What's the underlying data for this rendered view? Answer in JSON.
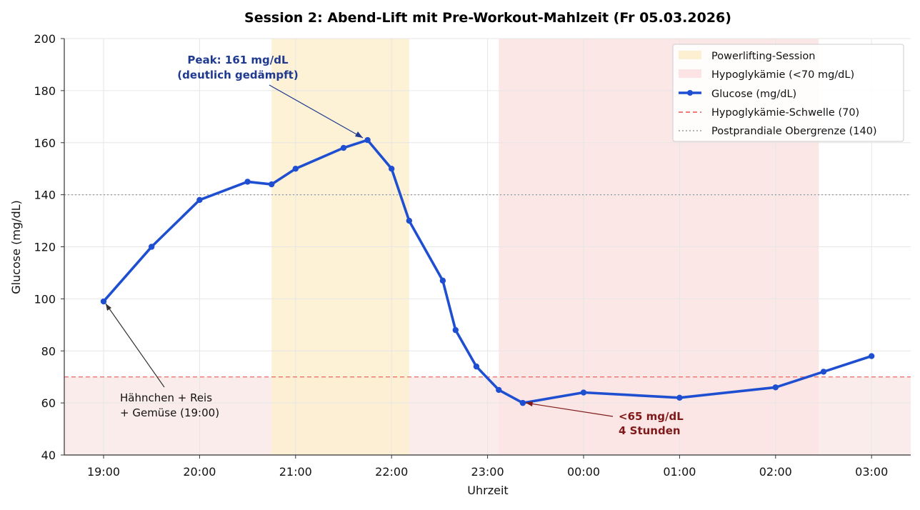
{
  "chart_data": {
    "type": "line",
    "title": "Session 2: Abend-Lift mit Pre-Workout-Mahlzeit (Fr 05.03.2026)",
    "xlabel": "Uhrzeit",
    "ylabel": "Glucose (mg/dL)",
    "ylim": [
      40,
      200
    ],
    "yticks": [
      "40",
      "60",
      "80",
      "100",
      "120",
      "140",
      "160",
      "180",
      "200"
    ],
    "xticks": [
      "19:00",
      "20:00",
      "21:00",
      "22:00",
      "23:00",
      "00:00",
      "01:00",
      "02:00",
      "03:00"
    ],
    "grid": true,
    "legend_position": "top-right",
    "series": [
      {
        "name": "Glucose (mg/dL)",
        "color": "#1f4fd1",
        "x": [
          "19:00",
          "19:30",
          "20:00",
          "20:30",
          "20:45",
          "21:00",
          "21:30",
          "21:45",
          "22:00",
          "22:11",
          "22:32",
          "22:40",
          "22:53",
          "23:07",
          "23:22",
          "00:00",
          "01:00",
          "02:00",
          "02:30",
          "03:00"
        ],
        "values": [
          99,
          120,
          138,
          145,
          144,
          150,
          158,
          161,
          150,
          130,
          107,
          88,
          74,
          65,
          60,
          64,
          62,
          66,
          72,
          78
        ]
      }
    ],
    "spans": [
      {
        "name": "Powerlifting-Session",
        "start": "20:45",
        "end": "22:11",
        "color": "#fdf0d2"
      },
      {
        "name": "Hypoglykämie (<70 mg/dL)",
        "start": "23:07",
        "end": "02:27",
        "color": "#fce4e4"
      }
    ],
    "reference_lines": [
      {
        "name": "Hypoglykämie-Schwelle (70)",
        "value": 70,
        "color": "#e8534f",
        "style": "dashed"
      },
      {
        "name": "Postprandiale Obergrenze (140)",
        "value": 140,
        "color": "#999999",
        "style": "dotted"
      }
    ],
    "annotations": {
      "peak": [
        "Peak: 161 mg/dL",
        "(deutlich gedämpft)"
      ],
      "low": [
        "<65 mg/dL",
        "4 Stunden"
      ],
      "meal": [
        "Hähnchen + Reis",
        "+ Gemüse (19:00)"
      ]
    }
  }
}
